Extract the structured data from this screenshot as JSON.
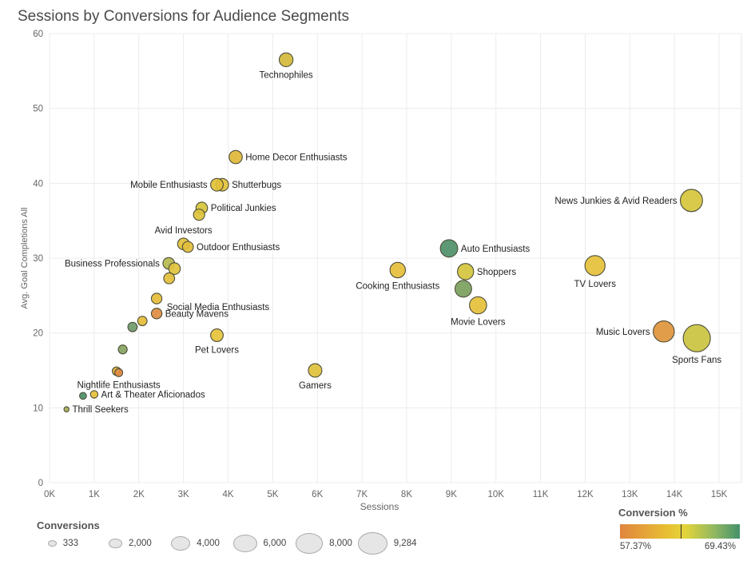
{
  "chart_data": {
    "type": "scatter",
    "title": "Sessions by Conversions for Audience Segments",
    "xlabel": "Sessions",
    "ylabel": "Avg. Goal Completions All",
    "xlim": [
      0,
      15500
    ],
    "ylim": [
      0,
      60
    ],
    "x_ticks": [
      0,
      1000,
      2000,
      3000,
      4000,
      5000,
      6000,
      7000,
      8000,
      9000,
      10000,
      11000,
      12000,
      13000,
      14000,
      15000
    ],
    "x_tick_labels": [
      "0K",
      "1K",
      "2K",
      "3K",
      "4K",
      "5K",
      "6K",
      "7K",
      "8K",
      "9K",
      "10K",
      "11K",
      "12K",
      "13K",
      "14K",
      "15K"
    ],
    "y_ticks": [
      0,
      10,
      20,
      30,
      40,
      50,
      60
    ],
    "y_tick_labels": [
      "0",
      "10",
      "20",
      "30",
      "40",
      "50",
      "60"
    ],
    "grid": true,
    "points": [
      {
        "label": "Technophiles",
        "x": 5300,
        "y": 56.5,
        "size": 2400,
        "color": "#d4b93a",
        "label_pos": "below"
      },
      {
        "label": "Home Decor Enthusiasts",
        "x": 4170,
        "y": 43.5,
        "size": 2200,
        "color": "#dfb83a",
        "label_pos": "right"
      },
      {
        "label": "Shutterbugs",
        "x": 3870,
        "y": 39.8,
        "size": 2000,
        "color": "#e2c13a",
        "label_pos": "right"
      },
      {
        "label": "Mobile Enthusiasts",
        "x": 3750,
        "y": 39.8,
        "size": 2000,
        "color": "#e2c13a",
        "label_pos": "left"
      },
      {
        "label": "Political Junkies",
        "x": 3410,
        "y": 36.7,
        "size": 1700,
        "color": "#d6c53c",
        "label_pos": "right"
      },
      {
        "label": "",
        "x": 3350,
        "y": 35.8,
        "size": 1600,
        "color": "#dcc23a",
        "label_pos": "none"
      },
      {
        "label": "Avid Investors",
        "x": 3000,
        "y": 31.9,
        "size": 1700,
        "color": "#e1c13a",
        "label_pos": "above"
      },
      {
        "label": "Outdoor Enthusiasts",
        "x": 3100,
        "y": 31.5,
        "size": 1500,
        "color": "#e3be3a",
        "label_pos": "right"
      },
      {
        "label": "Business Professionals",
        "x": 2670,
        "y": 29.3,
        "size": 1700,
        "color": "#b4b84f",
        "label_pos": "left"
      },
      {
        "label": "",
        "x": 2800,
        "y": 28.6,
        "size": 1700,
        "color": "#e0c43b",
        "label_pos": "none"
      },
      {
        "label": "",
        "x": 2680,
        "y": 27.3,
        "size": 1500,
        "color": "#e3be3a",
        "label_pos": "none"
      },
      {
        "label": "Social Media Enthusiasts",
        "x": 2400,
        "y": 24.6,
        "size": 1400,
        "color": "#e5bd38",
        "label_pos": "below-right"
      },
      {
        "label": "Beauty Mavens",
        "x": 2400,
        "y": 22.6,
        "size": 1400,
        "color": "#de8c40",
        "label_pos": "right"
      },
      {
        "label": "",
        "x": 2080,
        "y": 21.6,
        "size": 1100,
        "color": "#e5bd38",
        "label_pos": "none"
      },
      {
        "label": "",
        "x": 1860,
        "y": 20.8,
        "size": 1100,
        "color": "#6f9a6a",
        "label_pos": "none"
      },
      {
        "label": "Pet Lovers",
        "x": 3750,
        "y": 19.7,
        "size": 2000,
        "color": "#e5c33a",
        "label_pos": "below"
      },
      {
        "label": "",
        "x": 1640,
        "y": 17.8,
        "size": 1000,
        "color": "#86a35f",
        "label_pos": "none"
      },
      {
        "label": "Gamers",
        "x": 5950,
        "y": 15.0,
        "size": 2300,
        "color": "#e0c13a",
        "label_pos": "below"
      },
      {
        "label": "",
        "x": 1500,
        "y": 14.9,
        "size": 900,
        "color": "#e3b23c",
        "label_pos": "none"
      },
      {
        "label": "Nightlife Enthusiasts",
        "x": 1550,
        "y": 14.7,
        "size": 800,
        "color": "#e08a44",
        "label_pos": "below"
      },
      {
        "label": "Art & Theater Aficionados",
        "x": 1000,
        "y": 11.8,
        "size": 700,
        "color": "#e5c13a",
        "label_pos": "right"
      },
      {
        "label": "",
        "x": 750,
        "y": 11.6,
        "size": 600,
        "color": "#4c8e68",
        "label_pos": "none"
      },
      {
        "label": "Thrill Seekers",
        "x": 380,
        "y": 9.8,
        "size": 333,
        "color": "#a7ab5a",
        "label_pos": "right"
      },
      {
        "label": "Cooking Enthusiasts",
        "x": 7800,
        "y": 28.4,
        "size": 3000,
        "color": "#e5be3a",
        "label_pos": "below"
      },
      {
        "label": "Auto Enthusiasts",
        "x": 8950,
        "y": 31.3,
        "size": 3800,
        "color": "#4f9068",
        "label_pos": "right"
      },
      {
        "label": "Shoppers",
        "x": 9320,
        "y": 28.2,
        "size": 3300,
        "color": "#d4c43c",
        "label_pos": "right"
      },
      {
        "label": "",
        "x": 9270,
        "y": 25.9,
        "size": 3500,
        "color": "#7ca05d",
        "label_pos": "none"
      },
      {
        "label": "Movie Lovers",
        "x": 9600,
        "y": 23.7,
        "size": 3700,
        "color": "#e5c03a",
        "label_pos": "below"
      },
      {
        "label": "TV Lovers",
        "x": 12220,
        "y": 29.0,
        "size": 5100,
        "color": "#e5c03a",
        "label_pos": "below"
      },
      {
        "label": "News Junkies & Avid Readers",
        "x": 14380,
        "y": 37.7,
        "size": 6200,
        "color": "#d6c63c",
        "label_pos": "left"
      },
      {
        "label": "Music Lovers",
        "x": 13760,
        "y": 20.2,
        "size": 5600,
        "color": "#df953c",
        "label_pos": "left"
      },
      {
        "label": "Sports Fans",
        "x": 14500,
        "y": 19.3,
        "size": 9284,
        "color": "#cbc340",
        "label_pos": "below"
      }
    ]
  },
  "size_legend": {
    "title": "Conversions",
    "entries": [
      {
        "label": "333",
        "value": 333
      },
      {
        "label": "2,000",
        "value": 2000
      },
      {
        "label": "4,000",
        "value": 4000
      },
      {
        "label": "6,000",
        "value": 6000
      },
      {
        "label": "8,000",
        "value": 8000
      },
      {
        "label": "9,284",
        "value": 9284
      }
    ]
  },
  "color_legend": {
    "title": "Conversion %",
    "min_label": "57.37%",
    "max_label": "69.43%"
  }
}
